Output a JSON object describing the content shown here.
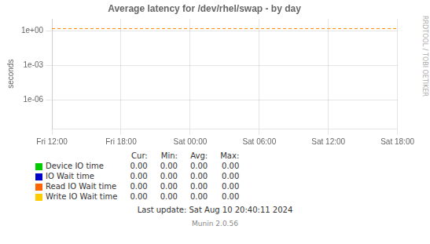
{
  "chart_data": {
    "type": "line",
    "title": "Average latency for /dev/rhel/swap - by day",
    "y_label": "seconds",
    "categories": [
      "Fri 12:00",
      "Fri 18:00",
      "Sat 00:00",
      "Sat 06:00",
      "Sat 12:00",
      "Sat 18:00"
    ],
    "log": "y",
    "ylim": [
      3e-09,
      10
    ],
    "yticks": [
      {
        "value": 1e-06,
        "label": "1e-06"
      },
      {
        "value": 0.001,
        "label": "1e-03"
      },
      {
        "value": 1,
        "label": "1e+00"
      }
    ],
    "grid": true,
    "series": [
      {
        "name": "Device IO time",
        "color": "#00cc00",
        "values": [
          null,
          null,
          null,
          null,
          null,
          null
        ],
        "table_values": [
          "0.00",
          "0.00",
          "0.00",
          "0.00"
        ]
      },
      {
        "name": "IO Wait time",
        "color": "#0000cc",
        "values": [
          null,
          null,
          null,
          null,
          null,
          null
        ],
        "table_values": [
          "0.00",
          "0.00",
          "0.00",
          "0.00"
        ]
      },
      {
        "name": "Read IO Wait time",
        "color": "#ff6600",
        "values": [
          null,
          null,
          null,
          null,
          null,
          null
        ],
        "table_values": [
          "0.00",
          "0.00",
          "0.00",
          "0.00"
        ]
      },
      {
        "name": "Write IO Wait time",
        "color": "#ffcc00",
        "values": [
          null,
          null,
          null,
          null,
          null,
          null
        ],
        "table_values": [
          "0.00",
          "0.00",
          "0.00",
          "0.00"
        ]
      }
    ],
    "table_headers": [
      "Cur:",
      "Min:",
      "Avg:",
      "Max:"
    ],
    "hlines": [
      {
        "value": 1.5,
        "color": "#ff8800",
        "line_style": "dashed"
      }
    ],
    "annotations": [
      "Last update: Sat Aug 10 20:40:11 2024",
      "Munin 2.0.56",
      "RRDTOOL / TOBI OETIKER"
    ]
  }
}
